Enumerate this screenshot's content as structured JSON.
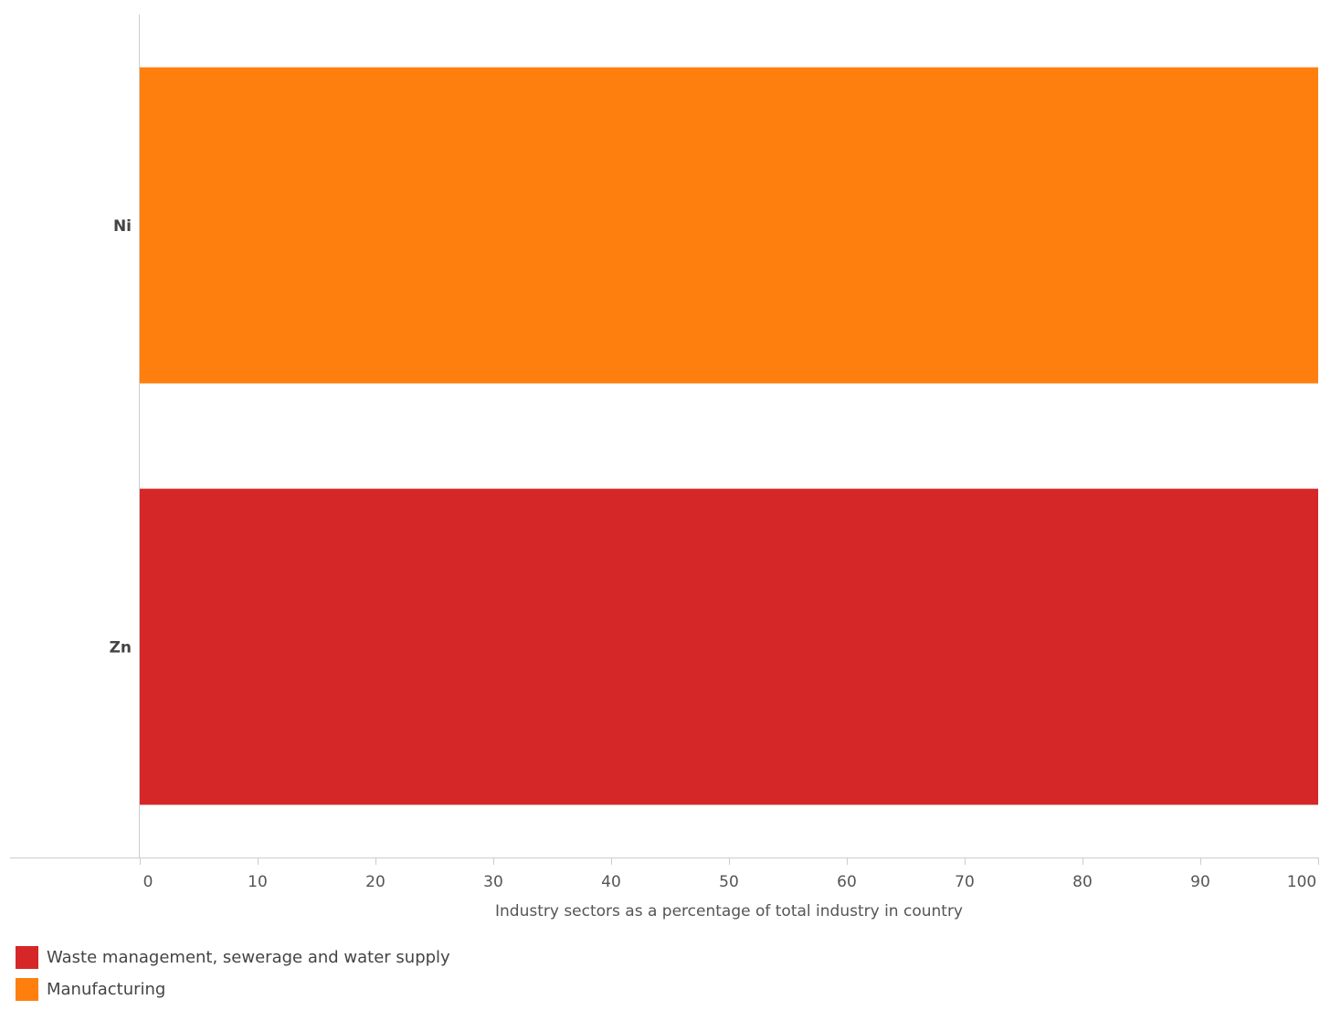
{
  "chart_data": {
    "type": "bar",
    "orientation": "horizontal",
    "stacked": true,
    "categories": [
      "Ni",
      "Zn"
    ],
    "series": [
      {
        "name": "Waste management, sewerage and water supply",
        "color": "#d62728",
        "values": [
          0,
          100
        ]
      },
      {
        "name": "Manufacturing",
        "color": "#ff7f0e",
        "values": [
          100,
          0
        ]
      }
    ],
    "xlim": [
      0,
      100
    ],
    "xticks": [
      0,
      10,
      20,
      30,
      40,
      50,
      60,
      70,
      80,
      90,
      100
    ],
    "xlabel": "Industry sectors as a percentage of total industry in country",
    "grid": false,
    "legend_position": "bottom-left"
  }
}
